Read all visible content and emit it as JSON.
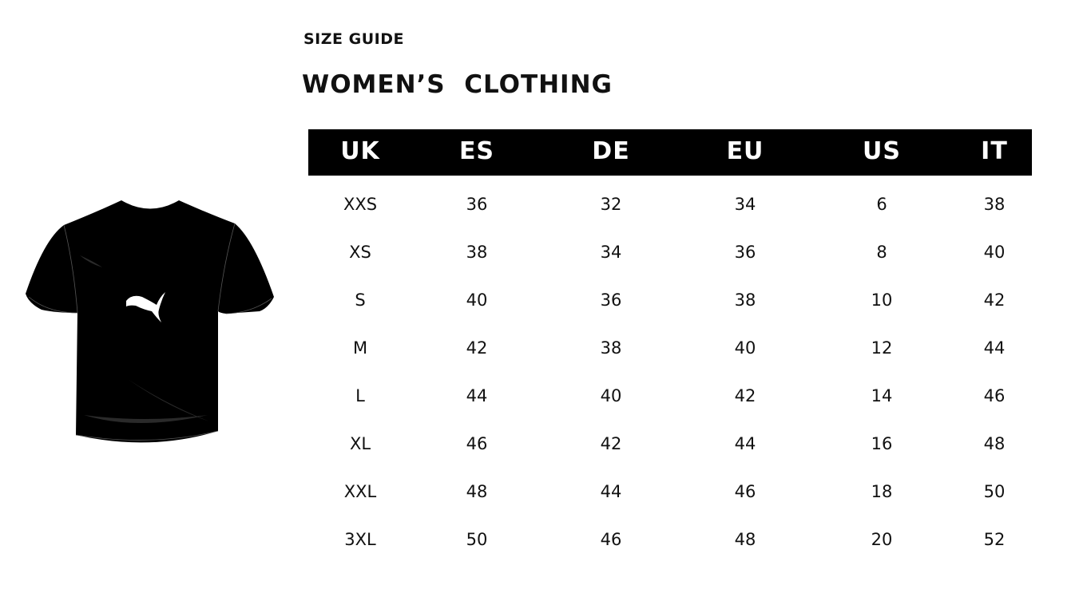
{
  "header": {
    "section": "SIZE GUIDE",
    "title": "WOMEN’S  CLOTHING"
  },
  "image": {
    "icon": "tshirt-with-puma-logo-icon",
    "shirt_color": "#000000",
    "logo_color": "#ffffff"
  },
  "table": {
    "columns": [
      "UK",
      "ES",
      "DE",
      "EU",
      "US",
      "IT"
    ],
    "rows": [
      [
        "XXS",
        "36",
        "32",
        "34",
        "6",
        "38"
      ],
      [
        "XS",
        "38",
        "34",
        "36",
        "8",
        "40"
      ],
      [
        "S",
        "40",
        "36",
        "38",
        "10",
        "42"
      ],
      [
        "M",
        "42",
        "38",
        "40",
        "12",
        "44"
      ],
      [
        "L",
        "44",
        "40",
        "42",
        "14",
        "46"
      ],
      [
        "XL",
        "46",
        "42",
        "44",
        "16",
        "48"
      ],
      [
        "XXL",
        "48",
        "44",
        "46",
        "18",
        "50"
      ],
      [
        "3XL",
        "50",
        "46",
        "48",
        "20",
        "52"
      ]
    ]
  }
}
